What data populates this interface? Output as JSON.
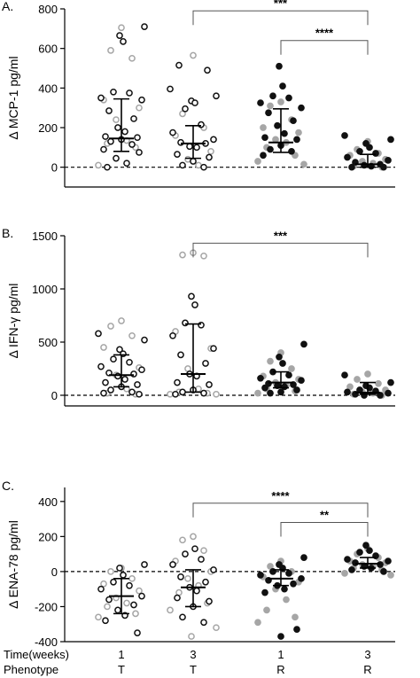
{
  "chart_data": [
    {
      "panel_label": "A.",
      "type": "scatter",
      "ylabel": "Δ MCP-1 pg/ml",
      "ylim": [
        -100,
        800
      ],
      "yticks": [
        0,
        200,
        400,
        600,
        800
      ],
      "reference_line_y": 0,
      "groups": [
        {
          "black_open": [
            710,
            665,
            635,
            380,
            375,
            350,
            340,
            285,
            245,
            200,
            180,
            155,
            150,
            140,
            130,
            115,
            90,
            75,
            45,
            20,
            0
          ],
          "grey_open": [
            705,
            590,
            550,
            340,
            300,
            240,
            135,
            120,
            100,
            10
          ],
          "grey_filled": [],
          "black_filled": [],
          "median": 145,
          "q1": 80,
          "q3": 345
        },
        {
          "black_open": [
            515,
            490,
            395,
            360,
            335,
            325,
            295,
            215,
            175,
            140,
            125,
            120,
            105,
            100,
            65,
            50,
            30,
            10,
            0
          ],
          "grey_open": [
            565,
            270,
            200,
            160,
            80,
            40,
            10
          ],
          "grey_filled": [],
          "black_filled": [],
          "median": 120,
          "q1": 45,
          "q3": 210
        },
        {
          "black_open": [],
          "grey_open": [],
          "grey_filled": [
            330,
            310,
            240,
            200,
            175,
            140,
            125,
            100,
            60,
            30,
            15
          ],
          "black_filled": [
            510,
            410,
            360,
            350,
            325,
            300,
            275,
            235,
            210,
            170,
            150,
            140,
            110,
            90,
            80,
            60
          ],
          "median": 125,
          "q1": 75,
          "q3": 295
        },
        {
          "black_open": [],
          "grey_open": [],
          "grey_filled": [
            130,
            90,
            70,
            60,
            40,
            30,
            20,
            5,
            0
          ],
          "black_filled": [
            160,
            140,
            120,
            100,
            80,
            70,
            50,
            35,
            25,
            15,
            10,
            5,
            0,
            0
          ],
          "median": 15,
          "q1": 0,
          "q3": 65
        }
      ],
      "annotations": [
        {
          "text": "***",
          "from_group": 2,
          "to_group": 4,
          "y": 790
        },
        {
          "text": "****",
          "from_group": 3,
          "to_group": 4,
          "y": 640
        }
      ]
    },
    {
      "panel_label": "B.",
      "type": "scatter",
      "ylabel": "Δ IFN-γ pg/ml",
      "ylim": [
        -100,
        1500
      ],
      "yticks": [
        0,
        500,
        1000,
        1500
      ],
      "reference_line_y": 0,
      "groups": [
        {
          "black_open": [
            580,
            520,
            430,
            390,
            340,
            310,
            270,
            240,
            210,
            200,
            180,
            150,
            120,
            100,
            80,
            50,
            30,
            20,
            10
          ],
          "grey_open": [
            700,
            650,
            560,
            450,
            260,
            190,
            60,
            20,
            10
          ],
          "grey_filled": [],
          "black_filled": [],
          "median": 190,
          "q1": 80,
          "q3": 380
        },
        {
          "black_open": [
            930,
            850,
            680,
            660,
            560,
            440,
            380,
            300,
            200,
            180,
            120,
            100,
            50,
            30,
            20,
            10
          ],
          "grey_open": [
            1340,
            1320,
            1310,
            600,
            440,
            250,
            60,
            30,
            20,
            10,
            10
          ],
          "grey_filled": [],
          "black_filled": [],
          "median": 200,
          "q1": 30,
          "q3": 670
        },
        {
          "black_open": [],
          "grey_open": [],
          "grey_filled": [
            400,
            320,
            250,
            180,
            150,
            120,
            90,
            60,
            40,
            20
          ],
          "black_filled": [
            480,
            360,
            300,
            220,
            190,
            160,
            140,
            110,
            100,
            90,
            80,
            70,
            50,
            30,
            20
          ],
          "median": 120,
          "q1": 70,
          "q3": 220
        },
        {
          "black_open": [],
          "grey_open": [],
          "grey_filled": [
            200,
            150,
            110,
            80,
            50,
            30,
            20,
            10,
            0
          ],
          "black_filled": [
            190,
            120,
            90,
            70,
            50,
            40,
            30,
            20,
            10,
            0,
            0
          ],
          "median": 25,
          "q1": 10,
          "q3": 120
        }
      ],
      "annotations": [
        {
          "text": "***",
          "from_group": 2,
          "to_group": 4,
          "y": 1430
        }
      ]
    },
    {
      "panel_label": "C.",
      "type": "scatter",
      "ylabel": "Δ ENA-78 pg/ml",
      "ylim": [
        -400,
        480
      ],
      "yticks": [
        -400,
        -200,
        0,
        200,
        400
      ],
      "reference_line_y": 0,
      "groups": [
        {
          "black_open": [
            40,
            20,
            -20,
            -60,
            -80,
            -100,
            -140,
            -160,
            -190,
            -220,
            -250,
            -280,
            -350
          ],
          "grey_open": [
            20,
            0,
            -40,
            -70,
            -110,
            -150,
            -180,
            -200,
            -240,
            -260
          ],
          "grey_filled": [],
          "black_filled": [],
          "median": -140,
          "q1": -240,
          "q3": -40
        },
        {
          "black_open": [
            130,
            100,
            70,
            40,
            10,
            -30,
            -60,
            -90,
            -110,
            -150,
            -170,
            -200,
            -260,
            -290
          ],
          "grey_open": [
            200,
            180,
            120,
            60,
            0,
            -40,
            -80,
            -120,
            -180,
            -220,
            -320,
            -370
          ],
          "grey_filled": [],
          "black_filled": [],
          "median": -90,
          "q1": -200,
          "q3": 10
        },
        {
          "black_open": [],
          "grey_open": [],
          "grey_filled": [
            60,
            30,
            0,
            -30,
            -60,
            -100,
            -160,
            -220,
            -260,
            -290
          ],
          "black_filled": [
            80,
            40,
            20,
            0,
            -10,
            -20,
            -40,
            -50,
            -70,
            -80,
            -100,
            -120,
            -330,
            -370
          ],
          "median": -40,
          "q1": -80,
          "q3": 10
        },
        {
          "black_open": [],
          "grey_open": [],
          "grey_filled": [
            130,
            100,
            80,
            60,
            50,
            40,
            30,
            20,
            10,
            -10,
            -20
          ],
          "black_filled": [
            150,
            120,
            110,
            90,
            70,
            60,
            50,
            40,
            30,
            20,
            10,
            0
          ],
          "median": 45,
          "q1": 20,
          "q3": 80
        }
      ],
      "annotations": [
        {
          "text": "****",
          "from_group": 2,
          "to_group": 4,
          "y": 390
        },
        {
          "text": "**",
          "from_group": 3,
          "to_group": 4,
          "y": 280
        }
      ]
    }
  ],
  "x_labels": {
    "time_row_label": "Time(weeks)",
    "phenotype_row_label": "Phenotype",
    "time": [
      "1",
      "3",
      "1",
      "3"
    ],
    "phenotype": [
      "T",
      "T",
      "R",
      "R"
    ]
  },
  "colors": {
    "black": "#111111",
    "grey": "#a6a6a6",
    "axis": "#000000"
  }
}
